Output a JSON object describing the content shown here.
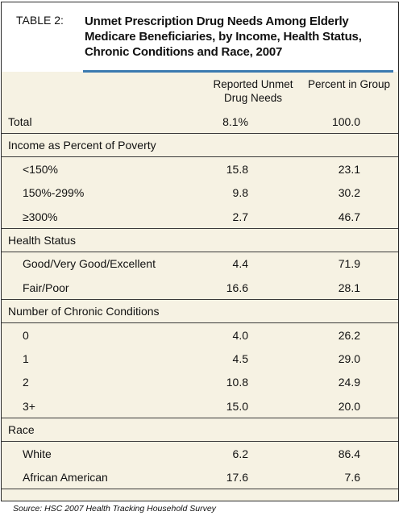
{
  "table": {
    "label": "TABLE 2:",
    "title_lines": [
      "Unmet Prescription Drug Needs Among Elderly",
      "Medicare Beneficiaries, by Income, Health Status,",
      "Chronic Conditions and Race, 2007"
    ],
    "col_unmet_lines": [
      "Reported Unmet",
      "Drug Needs"
    ],
    "col_pct": "Percent in Group",
    "rows": [
      {
        "kind": "data",
        "label": "Total",
        "unmet": "8.1%",
        "pct": "100.0"
      },
      {
        "kind": "section",
        "label": "Income as Percent of Poverty"
      },
      {
        "kind": "sub",
        "label": "<150%",
        "unmet": "15.8",
        "pct": "23.1"
      },
      {
        "kind": "sub",
        "label": "150%-299%",
        "unmet": "9.8",
        "pct": "30.2"
      },
      {
        "kind": "sub",
        "label": "≥300%",
        "unmet": "2.7",
        "pct": "46.7"
      },
      {
        "kind": "section",
        "label": "Health Status"
      },
      {
        "kind": "sub",
        "label": "Good/Very Good/Excellent",
        "unmet": "4.4",
        "pct": "71.9"
      },
      {
        "kind": "sub",
        "label": "Fair/Poor",
        "unmet": "16.6",
        "pct": "28.1"
      },
      {
        "kind": "section",
        "label": "Number of Chronic Conditions"
      },
      {
        "kind": "sub",
        "label": "0",
        "unmet": "4.0",
        "pct": "26.2"
      },
      {
        "kind": "sub",
        "label": "1",
        "unmet": "4.5",
        "pct": "29.0"
      },
      {
        "kind": "sub",
        "label": "2",
        "unmet": "10.8",
        "pct": "24.9"
      },
      {
        "kind": "sub",
        "label": "3+",
        "unmet": "15.0",
        "pct": "20.0"
      },
      {
        "kind": "section",
        "label": "Race"
      },
      {
        "kind": "sub",
        "label": "White",
        "unmet": "6.2",
        "pct": "86.4"
      },
      {
        "kind": "sub",
        "label": "African American",
        "unmet": "17.6",
        "pct": "7.6"
      }
    ]
  },
  "source": "Source: HSC 2007 Health Tracking Household Survey"
}
